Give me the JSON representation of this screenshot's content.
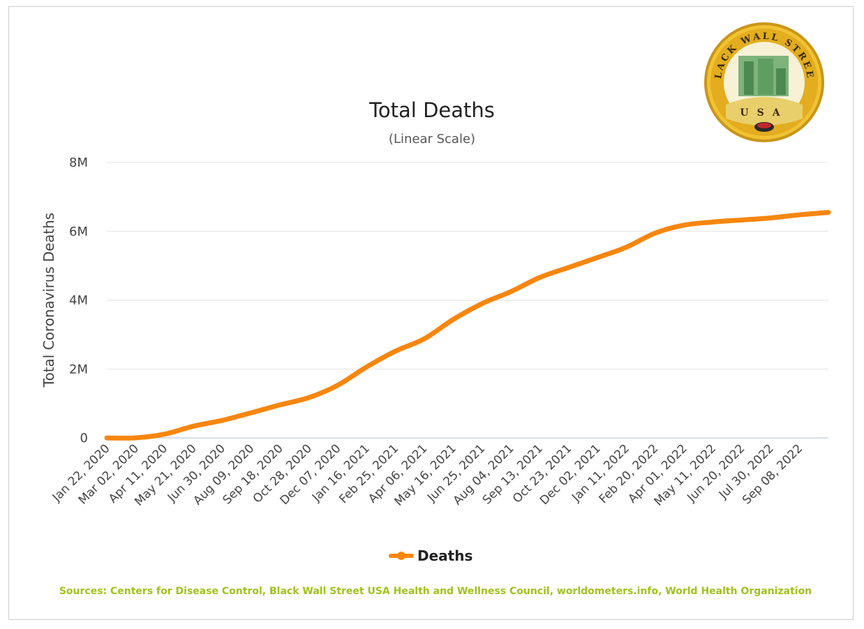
{
  "chart_data": {
    "type": "line",
    "title": "Total Deaths",
    "subtitle": "(Linear Scale)",
    "ylabel": "Total Coronavirus Deaths",
    "xlabel": "",
    "ylim": [
      0,
      8000000
    ],
    "yticks": [
      0,
      2000000,
      4000000,
      6000000,
      8000000
    ],
    "ytick_labels": [
      "0",
      "2M",
      "4M",
      "6M",
      "8M"
    ],
    "grid": true,
    "legend_position": "bottom",
    "color": "#f7860e",
    "categories": [
      "Jan 22, 2020",
      "Mar 02, 2020",
      "Apr 11, 2020",
      "May 21, 2020",
      "Jun 30, 2020",
      "Aug 09, 2020",
      "Sep 18, 2020",
      "Oct 28, 2020",
      "Dec 07, 2020",
      "Jan 16, 2021",
      "Feb 25, 2021",
      "Apr 06, 2021",
      "May 16, 2021",
      "Jun 25, 2021",
      "Aug 04, 2021",
      "Sep 13, 2021",
      "Oct 23, 2021",
      "Dec 02, 2021",
      "Jan 11, 2022",
      "Feb 20, 2022",
      "Apr 01, 2022",
      "May 11, 2022",
      "Jun 20, 2022",
      "Jul 30, 2022",
      "Sep 08, 2022"
    ],
    "series": [
      {
        "name": "Deaths",
        "x": [
          "Jan 22, 2020",
          "Mar 02, 2020",
          "Apr 11, 2020",
          "May 21, 2020",
          "Jun 30, 2020",
          "Aug 09, 2020",
          "Sep 18, 2020",
          "Oct 28, 2020",
          "Dec 07, 2020",
          "Jan 16, 2021",
          "Feb 25, 2021",
          "Apr 06, 2021",
          "May 16, 2021",
          "Jun 25, 2021",
          "Aug 04, 2021",
          "Sep 13, 2021",
          "Oct 23, 2021",
          "Dec 02, 2021",
          "Jan 11, 2022",
          "Feb 20, 2022",
          "Apr 01, 2022",
          "May 11, 2022",
          "Jun 20, 2022",
          "Jul 30, 2022",
          "Sep 08, 2022",
          "Sep 30, 2022"
        ],
        "values": [
          17,
          3100,
          110000,
          340000,
          510000,
          730000,
          960000,
          1170000,
          1530000,
          2060000,
          2520000,
          2880000,
          3440000,
          3900000,
          4250000,
          4660000,
          4950000,
          5240000,
          5540000,
          5950000,
          6180000,
          6270000,
          6330000,
          6390000,
          6480000,
          6550000
        ]
      }
    ]
  },
  "legend": {
    "label": "Deaths"
  },
  "source_text": "Sources: Centers for Disease Control, Black Wall Street USA Health and Wellness Council, worldometers.info, World Health Organization",
  "logo": {
    "top_text": "BLACK WALL STREET",
    "bottom_text": "USA"
  }
}
